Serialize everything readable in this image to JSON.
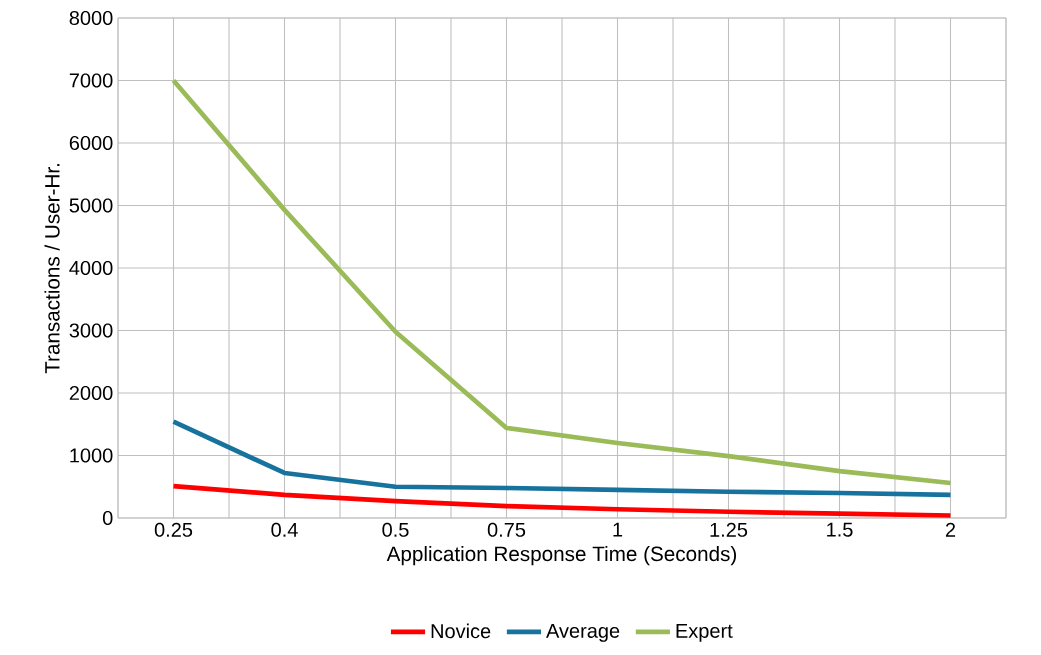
{
  "chart_data": {
    "type": "line",
    "xlabel": "Application Response Time (Seconds)",
    "ylabel": "Transactions / User-Hr.",
    "categories": [
      "0.25",
      "0.4",
      "0.5",
      "0.75",
      "1",
      "1.25",
      "1.5",
      "2"
    ],
    "series": [
      {
        "name": "Novice",
        "color": "#ff0000",
        "values": [
          510,
          370,
          270,
          190,
          140,
          100,
          70,
          40
        ]
      },
      {
        "name": "Average",
        "color": "#17729e",
        "values": [
          1540,
          720,
          500,
          480,
          450,
          420,
          400,
          370
        ]
      },
      {
        "name": "Expert",
        "color": "#9bbb59",
        "values": [
          7000,
          4930,
          2980,
          1440,
          1200,
          990,
          750,
          560
        ]
      }
    ],
    "ylim": [
      0,
      8000
    ],
    "yticks": [
      0,
      1000,
      2000,
      3000,
      4000,
      5000,
      6000,
      7000,
      8000
    ],
    "grid": true,
    "legend": "bottom",
    "marker": "none",
    "line_style": "solid"
  }
}
